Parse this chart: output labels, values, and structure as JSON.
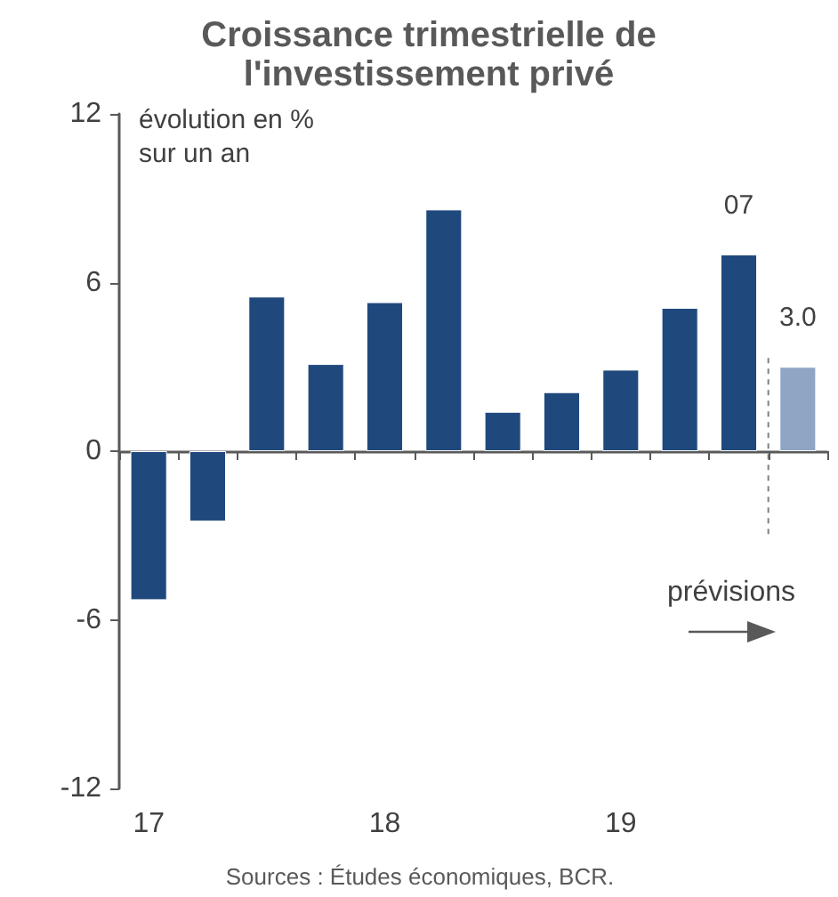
{
  "chart_data": {
    "type": "bar",
    "title": "Croissance trimestrielle de\nl'investissement privé",
    "ylabel": "évolution en %\nsur un an",
    "categories": [
      "17",
      null,
      null,
      null,
      "18",
      null,
      null,
      null,
      "19",
      null,
      null,
      null
    ],
    "values": [
      -5.3,
      -2.5,
      5.5,
      3.1,
      5.3,
      8.6,
      1.4,
      2.1,
      2.9,
      5.1,
      7.0,
      3.0
    ],
    "value_labels": [
      null,
      null,
      null,
      null,
      null,
      null,
      null,
      null,
      null,
      null,
      "07",
      "3.0"
    ],
    "colors": [
      "#1f497d",
      "#1f497d",
      "#1f497d",
      "#1f497d",
      "#1f497d",
      "#1f497d",
      "#1f497d",
      "#1f497d",
      "#1f497d",
      "#1f497d",
      "#1f497d",
      "#8ea5c3"
    ],
    "ylim": [
      -12,
      12
    ],
    "yticks": [
      -12,
      -6,
      0,
      6,
      12
    ],
    "annotations": [
      "prévisions",
      "Sources : Études économiques, BCR."
    ]
  }
}
